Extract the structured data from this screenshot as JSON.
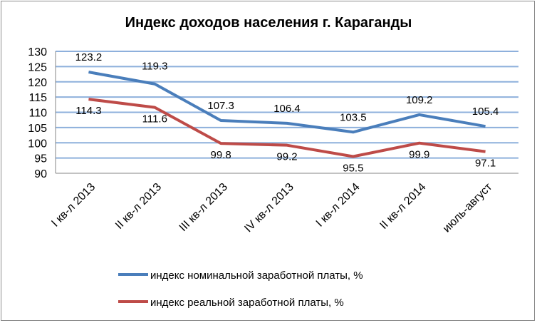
{
  "chart_data": {
    "type": "line",
    "title": "Индекс доходов населения г. Караганды",
    "categories": [
      "I кв-л 2013",
      "II кв-л 2013",
      "III кв-л 2013",
      "IV кв-л 2013",
      "I кв-л 2014",
      "II кв-л 2014",
      "июль-август"
    ],
    "series": [
      {
        "name": "индекс номинальной заработной платы, %",
        "color": "#4a7ebb",
        "values": [
          123.2,
          119.3,
          107.3,
          106.4,
          103.5,
          109.2,
          105.4
        ]
      },
      {
        "name": "индекс реальной заработной платы, %",
        "color": "#be4b48",
        "values": [
          114.3,
          111.6,
          99.8,
          99.2,
          95.5,
          99.9,
          97.1
        ]
      }
    ],
    "xlabel": "",
    "ylabel": "",
    "ylim": [
      90,
      130
    ],
    "yticks": [
      90,
      95,
      100,
      105,
      110,
      115,
      120,
      125,
      130
    ],
    "grid": true,
    "gridColor": "#8eb0dc",
    "legend": "bottom"
  }
}
